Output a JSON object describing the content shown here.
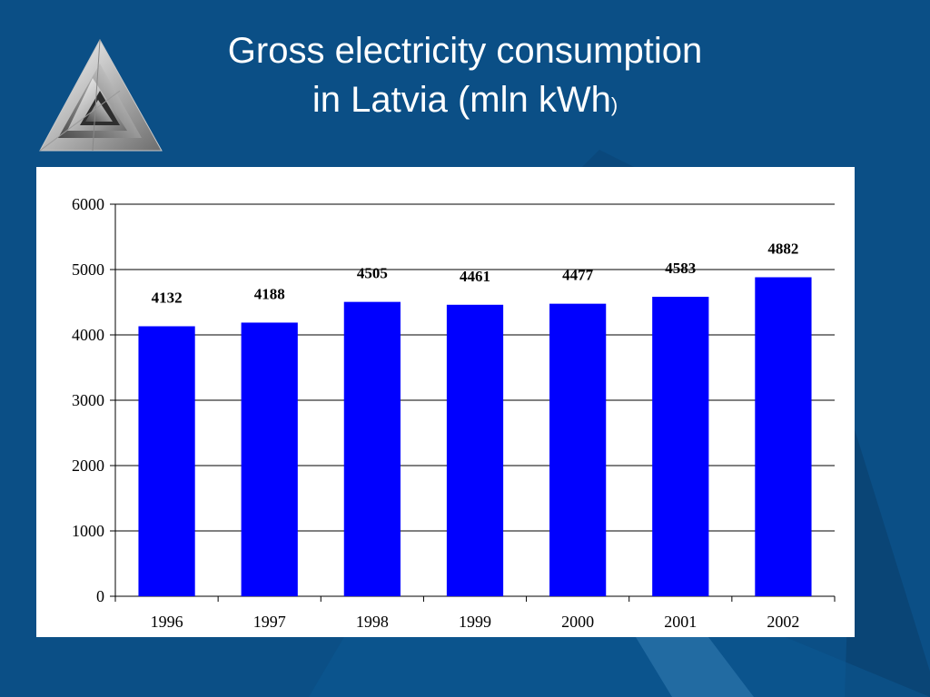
{
  "slide": {
    "title_line1": "Gross electricity consumption",
    "title_line2_main": "in Latvia (mln kWh",
    "title_line2_paren": ")",
    "background_color": "#0b4f86",
    "logo_icon": "triangle-spiral-logo"
  },
  "chart_data": {
    "type": "bar",
    "title": "Gross electricity consumption in Latvia (mln kWh)",
    "xlabel": "",
    "ylabel": "",
    "categories": [
      "1996",
      "1997",
      "1998",
      "1999",
      "2000",
      "2001",
      "2002"
    ],
    "values": [
      4132,
      4188,
      4505,
      4461,
      4477,
      4583,
      4882
    ],
    "data_labels": [
      "4132",
      "4188",
      "4505",
      "4461",
      "4477",
      "4583",
      "4882"
    ],
    "ylim": [
      0,
      6000
    ],
    "yticks": [
      0,
      1000,
      2000,
      3000,
      4000,
      5000,
      6000
    ],
    "grid": true,
    "legend": "none",
    "bar_color": "#0000ff"
  }
}
